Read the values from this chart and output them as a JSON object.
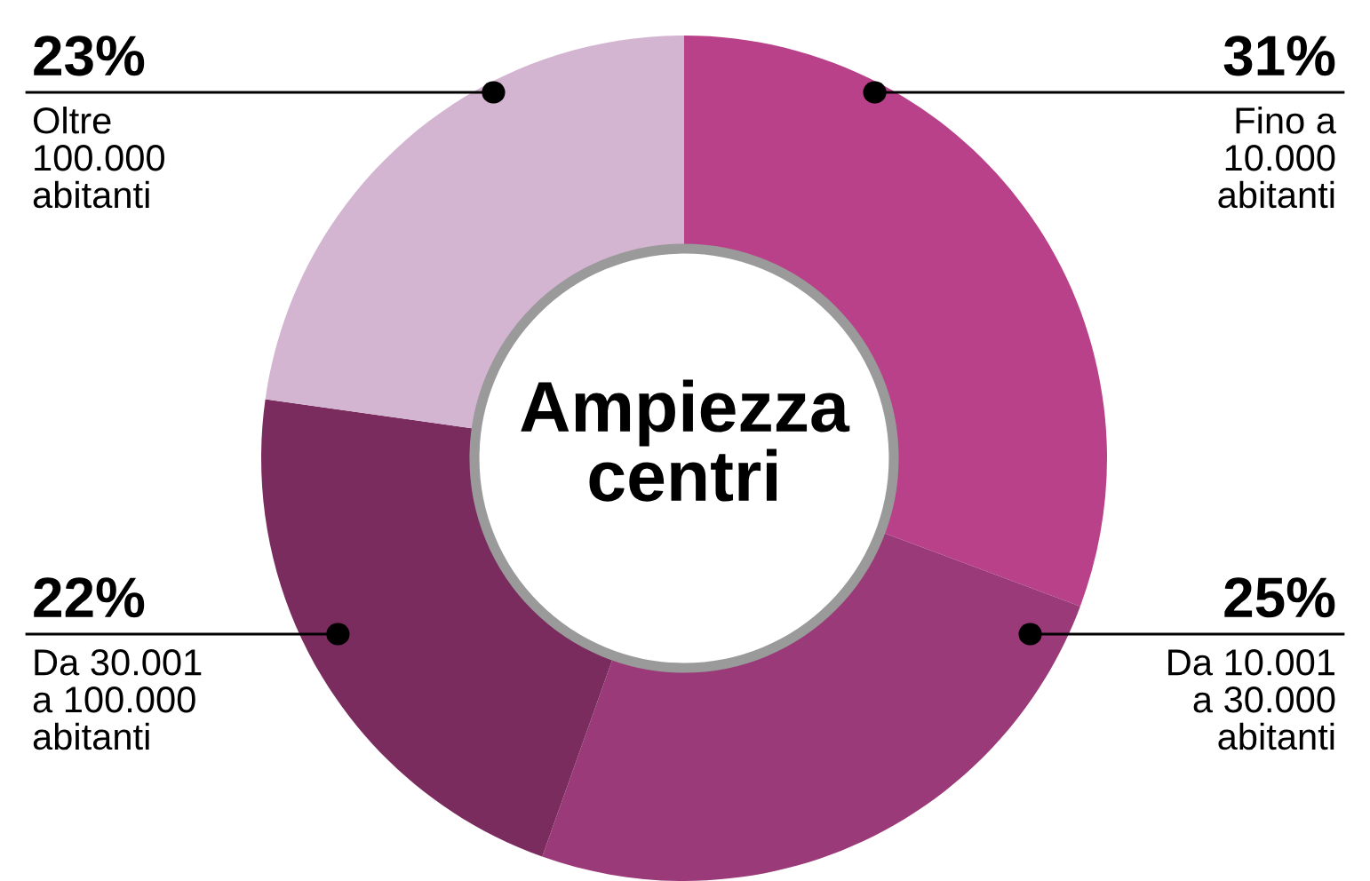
{
  "chart_data": {
    "type": "donut",
    "title": "Ampiezza\ncentri",
    "categories": [
      "Fino a\n10.000\nabitanti",
      "Da 10.001\na 30.000\nabitanti",
      "Da 30.001\na 100.000\nabitanti",
      "Oltre\n100.000\nabitanti"
    ],
    "values": [
      31,
      25,
      22,
      23
    ],
    "colors": [
      "#b94189",
      "#9a3a78",
      "#7b2c5f",
      "#d4b5d1"
    ],
    "value_labels": [
      "31%",
      "25%",
      "22%",
      "23%"
    ]
  }
}
